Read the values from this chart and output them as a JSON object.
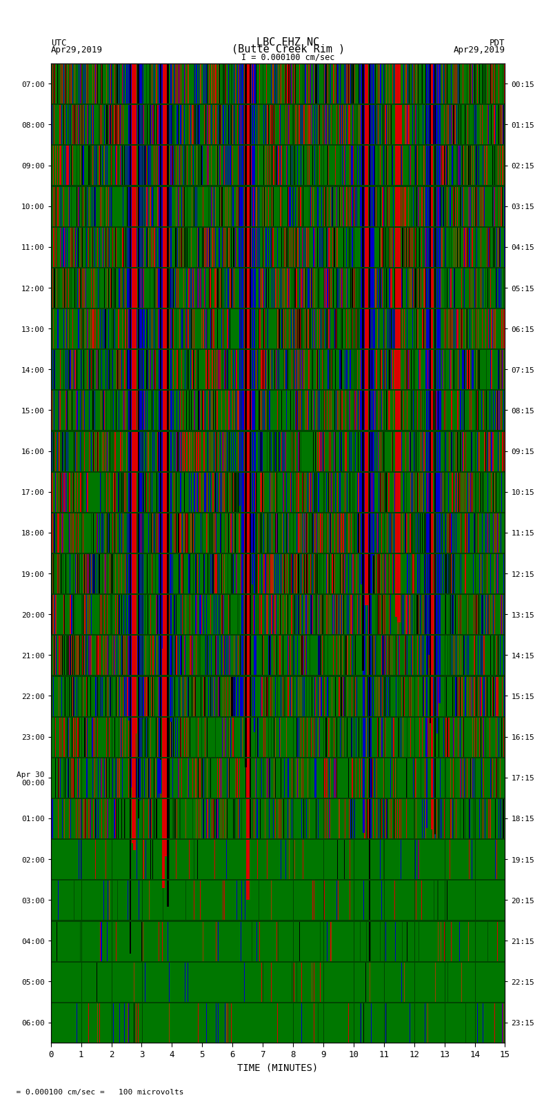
{
  "title_line1": "LBC EHZ NC",
  "title_line2": "(Butte Creek Rim )",
  "title_line3": "I = 0.000100 cm/sec",
  "label_utc": "UTC",
  "label_pdt": "PDT",
  "date_left": "Apr29,2019",
  "date_right": "Apr29,2019",
  "xlabel": "TIME (MINUTES)",
  "bottom_label": "= 0.000100 cm/sec =   100 microvolts",
  "yticks_left": [
    "07:00",
    "08:00",
    "09:00",
    "10:00",
    "11:00",
    "12:00",
    "13:00",
    "14:00",
    "15:00",
    "16:00",
    "17:00",
    "18:00",
    "19:00",
    "20:00",
    "21:00",
    "22:00",
    "23:00",
    "Apr 30\n00:00",
    "01:00",
    "02:00",
    "03:00",
    "04:00",
    "05:00",
    "06:00"
  ],
  "yticks_right": [
    "00:15",
    "01:15",
    "02:15",
    "03:15",
    "04:15",
    "05:15",
    "06:15",
    "07:15",
    "08:15",
    "09:15",
    "10:15",
    "11:15",
    "12:15",
    "13:15",
    "14:15",
    "15:15",
    "16:15",
    "17:15",
    "18:15",
    "19:15",
    "20:15",
    "21:15",
    "22:15",
    "23:15"
  ],
  "xticks": [
    0,
    1,
    2,
    3,
    4,
    5,
    6,
    7,
    8,
    9,
    10,
    11,
    12,
    13,
    14,
    15
  ],
  "xmin": 0,
  "xmax": 15,
  "bg_color_r": 0,
  "bg_color_g": 119,
  "bg_color_b": 0,
  "fig_bg": "#ffffff",
  "title_fontsize": 11,
  "tick_fontsize": 9,
  "n_rows": 24,
  "n_cols": 900,
  "seed": 42
}
